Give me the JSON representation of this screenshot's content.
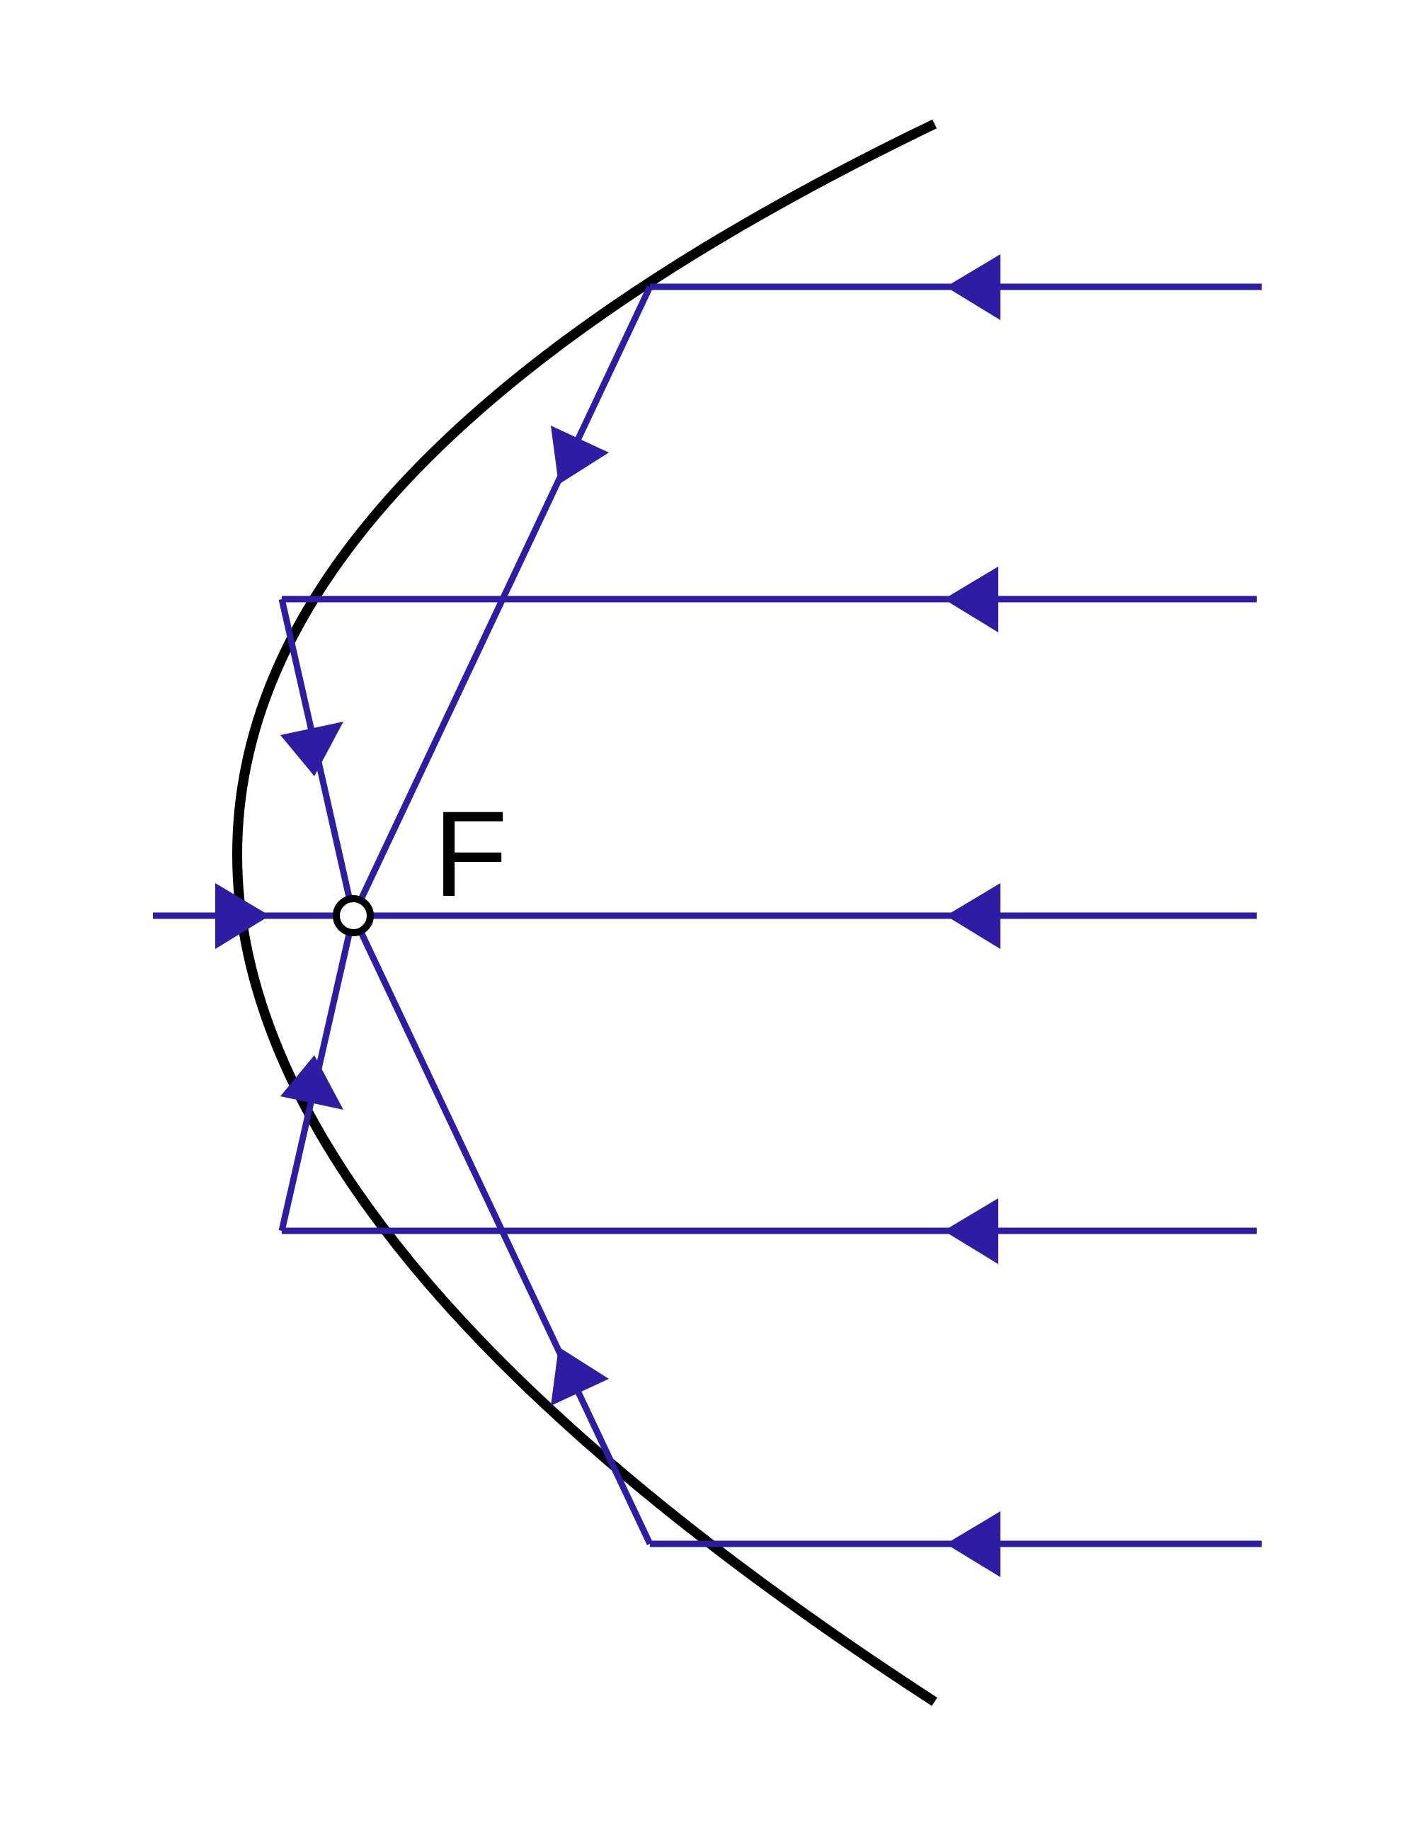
{
  "diagram": {
    "focus_label": "F",
    "colors": {
      "mirror": "#000000",
      "ray": "#2e1ca3",
      "focus_fill": "#ffffff",
      "background": "#ffffff"
    }
  }
}
